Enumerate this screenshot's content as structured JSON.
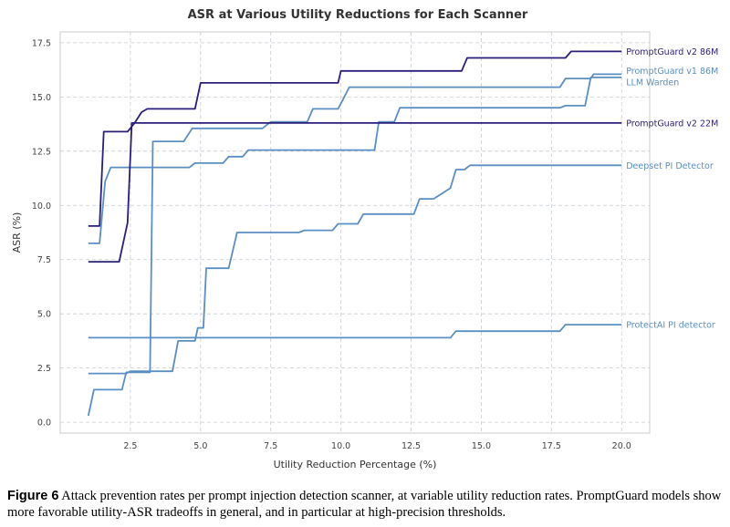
{
  "caption": {
    "label": "Figure 6",
    "text": "Attack prevention rates per prompt injection detection scanner, at variable utility reduction rates. PromptGuard models show more favorable utility-ASR tradeoffs in general, and in particular at high-precision thresholds."
  },
  "chart_data": {
    "type": "line",
    "title": "ASR at Various Utility Reductions for Each Scanner",
    "xlabel": "Utility Reduction Percentage (%)",
    "ylabel": "ASR (%)",
    "xlim": [
      0,
      21
    ],
    "ylim": [
      -0.5,
      18
    ],
    "xticks": [
      "2.5",
      "5.0",
      "7.5",
      "10.0",
      "12.5",
      "15.0",
      "17.5",
      "20.0"
    ],
    "yticks": [
      "0.0",
      "2.5",
      "5.0",
      "7.5",
      "10.0",
      "12.5",
      "15.0",
      "17.5"
    ],
    "grid": true,
    "legend": "end-of-line labels",
    "series": [
      {
        "name": "PromptGuard v2 86M",
        "color": "#2a1f7a",
        "points": [
          [
            1.0,
            9.05
          ],
          [
            1.4,
            9.05
          ],
          [
            1.55,
            13.4
          ],
          [
            2.4,
            13.4
          ],
          [
            2.65,
            13.8
          ],
          [
            2.9,
            14.3
          ],
          [
            3.1,
            14.45
          ],
          [
            4.8,
            14.45
          ],
          [
            5.0,
            15.65
          ],
          [
            9.9,
            15.65
          ],
          [
            10.0,
            16.2
          ],
          [
            14.3,
            16.2
          ],
          [
            14.5,
            16.8
          ],
          [
            18.0,
            16.8
          ],
          [
            18.2,
            17.1
          ],
          [
            20.0,
            17.1
          ]
        ]
      },
      {
        "name": "PromptGuard v1 86M",
        "color": "#5b8fc4",
        "points": [
          [
            1.0,
            0.3
          ],
          [
            1.2,
            1.5
          ],
          [
            2.2,
            1.5
          ],
          [
            2.35,
            2.3
          ],
          [
            3.2,
            2.3
          ],
          [
            3.3,
            12.95
          ],
          [
            4.4,
            12.95
          ],
          [
            4.7,
            13.55
          ],
          [
            7.2,
            13.55
          ],
          [
            7.5,
            13.85
          ],
          [
            8.8,
            13.85
          ],
          [
            9.0,
            14.45
          ],
          [
            9.9,
            14.45
          ],
          [
            10.3,
            15.45
          ],
          [
            17.8,
            15.45
          ],
          [
            18.0,
            15.85
          ],
          [
            18.9,
            15.85
          ],
          [
            19.0,
            16.05
          ],
          [
            20.0,
            16.05
          ]
        ]
      },
      {
        "name": "LLM Warden",
        "color": "#5b8fc4",
        "points": [
          [
            1.0,
            8.25
          ],
          [
            1.4,
            8.25
          ],
          [
            1.6,
            11.1
          ],
          [
            1.8,
            11.75
          ],
          [
            4.6,
            11.75
          ],
          [
            4.8,
            11.95
          ],
          [
            5.8,
            11.95
          ],
          [
            6.0,
            12.25
          ],
          [
            6.5,
            12.25
          ],
          [
            6.7,
            12.55
          ],
          [
            11.2,
            12.55
          ],
          [
            11.35,
            13.85
          ],
          [
            11.9,
            13.85
          ],
          [
            12.1,
            14.5
          ],
          [
            17.8,
            14.5
          ],
          [
            18.0,
            14.6
          ],
          [
            18.7,
            14.6
          ],
          [
            18.9,
            15.9
          ],
          [
            20.0,
            15.9
          ]
        ]
      },
      {
        "name": "PromptGuard v2 22M",
        "color": "#2a1f7a",
        "points": [
          [
            1.0,
            7.4
          ],
          [
            2.1,
            7.4
          ],
          [
            2.4,
            9.2
          ],
          [
            2.55,
            13.8
          ],
          [
            20.0,
            13.8
          ]
        ]
      },
      {
        "name": "Deepset PI Detector",
        "color": "#5b8fc4",
        "points": [
          [
            1.0,
            2.25
          ],
          [
            2.35,
            2.25
          ],
          [
            2.5,
            2.35
          ],
          [
            3.2,
            2.35
          ],
          [
            3.3,
            2.35
          ],
          [
            4.0,
            2.35
          ],
          [
            4.2,
            3.75
          ],
          [
            4.8,
            3.75
          ],
          [
            4.9,
            4.35
          ],
          [
            5.1,
            4.35
          ],
          [
            5.2,
            7.1
          ],
          [
            6.0,
            7.1
          ],
          [
            6.3,
            8.75
          ],
          [
            8.5,
            8.75
          ],
          [
            8.7,
            8.85
          ],
          [
            9.7,
            8.85
          ],
          [
            9.9,
            9.15
          ],
          [
            10.6,
            9.15
          ],
          [
            10.8,
            9.6
          ],
          [
            12.6,
            9.6
          ],
          [
            12.8,
            10.3
          ],
          [
            13.3,
            10.3
          ],
          [
            13.6,
            10.55
          ],
          [
            13.9,
            10.8
          ],
          [
            14.1,
            11.65
          ],
          [
            14.4,
            11.65
          ],
          [
            14.6,
            11.85
          ],
          [
            20.0,
            11.85
          ]
        ]
      },
      {
        "name": "ProtectAI PI detector",
        "color": "#5b8fc4",
        "points": [
          [
            1.0,
            3.9
          ],
          [
            13.9,
            3.9
          ],
          [
            14.1,
            4.2
          ],
          [
            17.8,
            4.2
          ],
          [
            18.0,
            4.5
          ],
          [
            20.0,
            4.5
          ]
        ]
      }
    ]
  }
}
